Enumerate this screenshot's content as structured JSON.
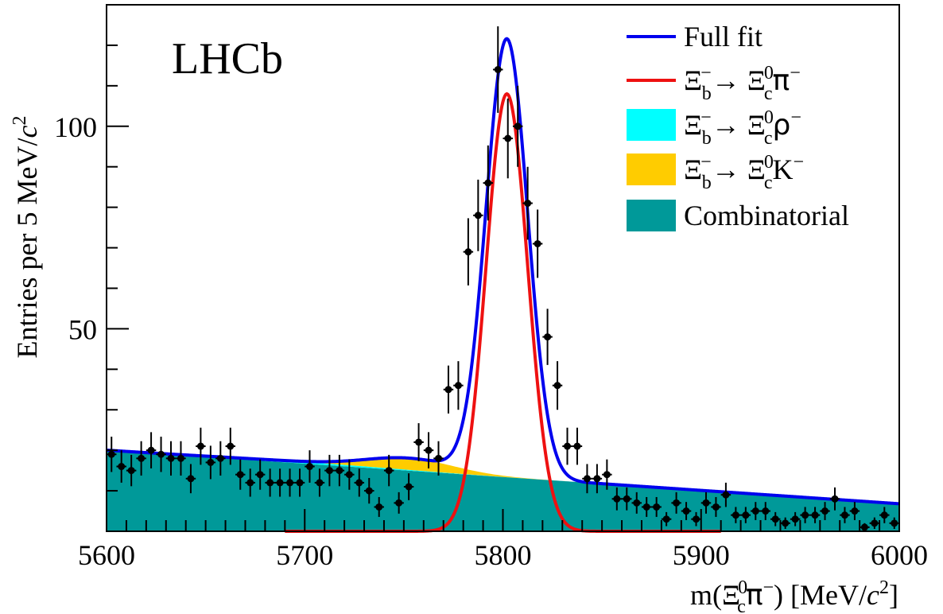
{
  "chart_data": {
    "type": "line",
    "experiment_label": "LHCb",
    "xlabel": "m(Ξc0π−) [MeV/c2]",
    "xlabel_parts": {
      "pre": "m(",
      "Xi": "Ξ",
      "sub": "c",
      "sup": "0",
      "pi": "π",
      "pisup": "−",
      "post": ") [MeV/",
      "c": "c",
      "exp": "2",
      "close": "]"
    },
    "ylabel": "Entries per 5 MeV/c2",
    "ylabel_parts": {
      "pre": "Entries per 5 MeV/",
      "c": "c",
      "exp": "2"
    },
    "xlim": [
      5600,
      6000
    ],
    "ylim": [
      0,
      130
    ],
    "x_ticks": [
      5600,
      5700,
      5800,
      5900,
      6000
    ],
    "x_tick_labels": [
      "5600",
      "5700",
      "5800",
      "5900",
      "6000"
    ],
    "y_ticks": [
      50,
      100
    ],
    "y_tick_labels": [
      "50",
      "100"
    ],
    "legend_position": "top-right",
    "legend": [
      {
        "key": "full",
        "label": "Full fit",
        "kind": "line",
        "color": "#0000ee"
      },
      {
        "key": "signal",
        "label": "Ξb−→ Ξc0π−",
        "kind": "line",
        "color": "#ee1111"
      },
      {
        "key": "rho",
        "label": "Ξb−→ Ξc0ρ−",
        "kind": "box",
        "color": "#00ffff"
      },
      {
        "key": "kaon",
        "label": "Ξb−→ Ξc0K−",
        "kind": "box",
        "color": "#ffcc00"
      },
      {
        "key": "comb",
        "label": "Combinatorial",
        "kind": "box",
        "color": "#009999"
      }
    ],
    "legend_parts": {
      "Xi": "Ξ",
      "b": "b",
      "c": "c",
      "minus": "−",
      "zero": "0",
      "arrow": "→ ",
      "pi": "π",
      "rho": "ρ",
      "K": "K"
    },
    "model": {
      "signal_mean": 5802,
      "signal_sigma": 10.5,
      "signal_peak": 108,
      "signal_range": [
        5690,
        5910
      ],
      "combinatorial_start": 20,
      "combinatorial_slope_per_100": 0.33,
      "rho_peak": 0.4,
      "kaon_peak": 2.9,
      "kaon_mean": 5753,
      "kaon_sigma": 22
    },
    "data_points": {
      "x": [
        5602.5,
        5607.5,
        5612.5,
        5617.5,
        5622.5,
        5627.5,
        5632.5,
        5637.5,
        5642.5,
        5647.5,
        5652.5,
        5657.5,
        5662.5,
        5667.5,
        5672.5,
        5677.5,
        5682.5,
        5687.5,
        5692.5,
        5697.5,
        5702.5,
        5707.5,
        5712.5,
        5717.5,
        5722.5,
        5727.5,
        5732.5,
        5737.5,
        5742.5,
        5747.5,
        5752.5,
        5757.5,
        5762.5,
        5767.5,
        5772.5,
        5777.5,
        5782.5,
        5787.5,
        5792.5,
        5797.5,
        5802.5,
        5807.5,
        5812.5,
        5817.5,
        5822.5,
        5827.5,
        5832.5,
        5837.5,
        5842.5,
        5847.5,
        5852.5,
        5857.5,
        5862.5,
        5867.5,
        5872.5,
        5877.5,
        5882.5,
        5887.5,
        5892.5,
        5897.5,
        5902.5,
        5907.5,
        5912.5,
        5917.5,
        5922.5,
        5927.5,
        5932.5,
        5937.5,
        5942.5,
        5947.5,
        5952.5,
        5957.5,
        5962.5,
        5967.5,
        5972.5,
        5977.5,
        5982.5,
        5987.5,
        5992.5,
        5997.5
      ],
      "y": [
        19,
        16,
        15,
        18,
        20,
        19,
        18,
        18,
        13,
        21,
        17,
        18,
        21,
        14,
        12,
        14,
        12,
        12,
        12,
        12,
        16,
        12,
        15,
        15,
        14,
        12,
        10,
        6,
        15,
        7,
        11,
        22,
        20,
        18,
        35,
        36,
        69,
        78,
        86,
        114,
        97,
        100,
        81,
        71,
        48,
        36,
        21,
        21,
        13,
        13,
        14,
        8,
        8,
        7,
        6,
        6,
        3,
        7,
        5,
        3,
        7,
        6,
        9,
        4,
        4,
        5,
        5,
        3,
        2,
        3,
        4,
        4,
        5,
        8,
        4,
        5,
        1,
        2,
        4,
        2
      ]
    }
  }
}
